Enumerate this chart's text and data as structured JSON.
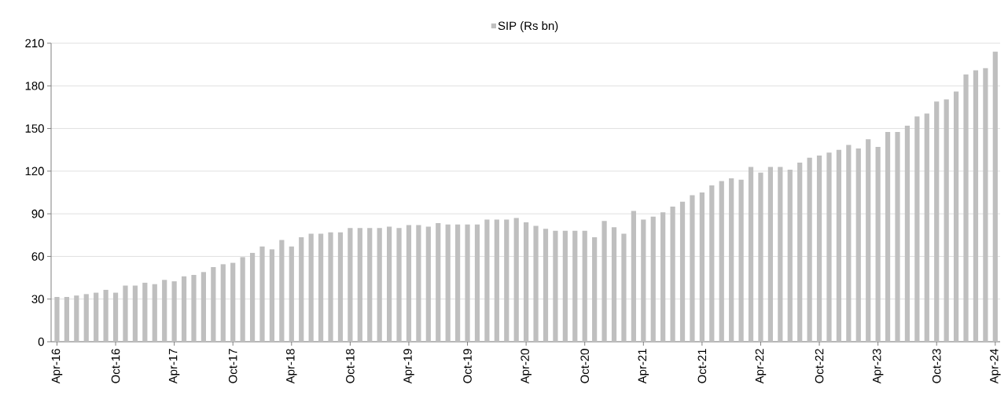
{
  "chart_data": {
    "type": "bar",
    "categories": [
      "Apr-16",
      null,
      null,
      null,
      null,
      null,
      "Oct-16",
      null,
      null,
      null,
      null,
      null,
      "Apr-17",
      null,
      null,
      null,
      null,
      null,
      "Oct-17",
      null,
      null,
      null,
      null,
      null,
      "Apr-18",
      null,
      null,
      null,
      null,
      null,
      "Oct-18",
      null,
      null,
      null,
      null,
      null,
      "Apr-19",
      null,
      null,
      null,
      null,
      null,
      "Oct-19",
      null,
      null,
      null,
      null,
      null,
      "Apr-20",
      null,
      null,
      null,
      null,
      null,
      "Oct-20",
      null,
      null,
      null,
      null,
      null,
      "Apr-21",
      null,
      null,
      null,
      null,
      null,
      "Oct-21",
      null,
      null,
      null,
      null,
      null,
      "Apr-22",
      null,
      null,
      null,
      null,
      null,
      "Oct-22",
      null,
      null,
      null,
      null,
      null,
      "Apr-23",
      null,
      null,
      null,
      null,
      null,
      "Oct-23",
      null,
      null,
      null,
      null,
      null,
      "Apr-24"
    ],
    "series": [
      {
        "name": "SIP (Rs bn)",
        "color": "#bfbfbf",
        "values": [
          31.5,
          31.5,
          32.5,
          33.5,
          34.5,
          36.5,
          34.5,
          39.5,
          39.5,
          41.5,
          40.5,
          43.5,
          42.5,
          46,
          47,
          49,
          52.5,
          54.5,
          55.5,
          59.5,
          62.5,
          67,
          65,
          71.5,
          67,
          73.5,
          76,
          76,
          77,
          77,
          80,
          80,
          80,
          80,
          81,
          80,
          82,
          82,
          81,
          83.5,
          82.5,
          82.5,
          82.5,
          82.5,
          86,
          86,
          86,
          87,
          84,
          81.5,
          79.5,
          78,
          78,
          78,
          78,
          73.5,
          85,
          80.5,
          76,
          92,
          86,
          88,
          91,
          95,
          98.5,
          103,
          105,
          110,
          113,
          115,
          114,
          123,
          119,
          123,
          123,
          121,
          126,
          129.5,
          131,
          133,
          135,
          138.5,
          136,
          142.5,
          137,
          147.5,
          147.5,
          152,
          158.5,
          160.5,
          169,
          170.5,
          176,
          188,
          191,
          192.5,
          204
        ]
      }
    ],
    "ylim": [
      0,
      210
    ],
    "yticks": [
      0,
      30,
      60,
      90,
      120,
      150,
      180,
      210
    ],
    "grid": "y",
    "legend": "top"
  }
}
